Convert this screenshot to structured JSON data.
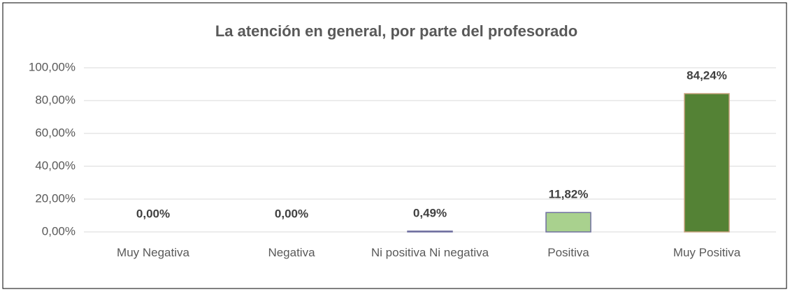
{
  "chart_data": {
    "type": "bar",
    "title": "La atención en general, por parte del profesorado",
    "categories": [
      "Muy Negativa",
      "Negativa",
      "Ni positiva Ni negativa",
      "Positiva",
      "Muy Positiva"
    ],
    "values": [
      0,
      0,
      0.49,
      11.82,
      84.24
    ],
    "value_labels": [
      "0,00%",
      "0,00%",
      "0,49%",
      "11,82%",
      "84,24%"
    ],
    "colors": [
      "#8e7cc3",
      "#8e7cc3",
      "#8e7cc3",
      "#a9d18e",
      "#548235"
    ],
    "ylim": [
      0,
      100
    ],
    "yticks": [
      {
        "value": 0,
        "label": "0,00%"
      },
      {
        "value": 20,
        "label": "20,00%"
      },
      {
        "value": 40,
        "label": "40,00%"
      },
      {
        "value": 60,
        "label": "60,00%"
      },
      {
        "value": 80,
        "label": "80,00%"
      },
      {
        "value": 100,
        "label": "100,00%"
      }
    ],
    "grid": true
  }
}
